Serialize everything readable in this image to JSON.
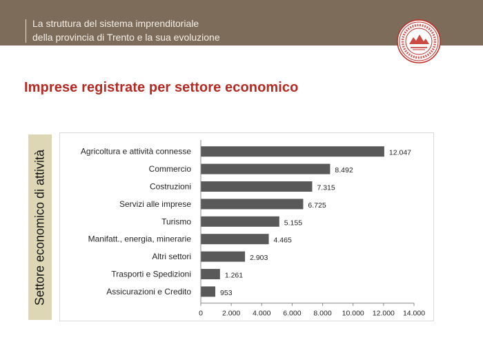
{
  "header": {
    "title_line1": "La struttura del sistema imprenditoriale",
    "title_line2": "della provincia di Trento e la sua evoluzione"
  },
  "page_title": "Imprese registrate per settore economico",
  "colors": {
    "header_band": "#7d6c5a",
    "title": "#b52a23",
    "bar": "#595959",
    "ylabel_box": "#ded7b5",
    "seal": "#c22a22"
  },
  "logo": {
    "icon": "chamber-of-commerce-seal-icon"
  },
  "chart_data": {
    "type": "bar",
    "orientation": "horizontal",
    "title": "",
    "xlabel": "",
    "ylabel": "Settore economico di attività",
    "categories": [
      "Agricoltura e attività connesse",
      "Commercio",
      "Costruzioni",
      "Servizi alle imprese",
      "Turismo",
      "Manifatt., energia, minerarie",
      "Altri settori",
      "Trasporti e Spedizioni",
      "Assicurazioni e Credito"
    ],
    "values": [
      12047,
      8492,
      7315,
      6725,
      5155,
      4465,
      2903,
      1261,
      953
    ],
    "value_labels": [
      "12.047",
      "8.492",
      "7.315",
      "6.725",
      "5.155",
      "4.465",
      "2.903",
      "1.261",
      "953"
    ],
    "xlim": [
      0,
      14000
    ],
    "xticks": [
      0,
      2000,
      4000,
      6000,
      8000,
      10000,
      12000,
      14000
    ],
    "xtick_labels": [
      "0",
      "2.000",
      "4.000",
      "6.000",
      "8.000",
      "10.000",
      "12.000",
      "14.000"
    ],
    "grid": false,
    "legend": "none"
  }
}
